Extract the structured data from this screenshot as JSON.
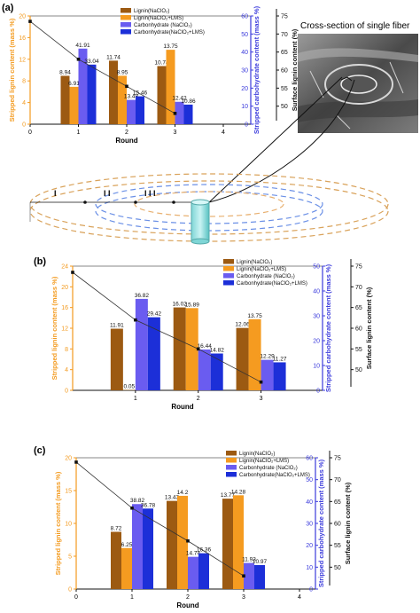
{
  "panels": [
    {
      "id": "a",
      "panel_label": "(a)",
      "chart_data": {
        "type": "bar",
        "xlabel": "Round",
        "ylabel_left": "Stripped lignin content (mass %)",
        "ylabel_right": "Stripped carbohydrate content (mass %)",
        "ylabel_far_right": "Surface lignin content (%)",
        "xlim": [
          0,
          4
        ],
        "xticks": [
          "0",
          "1",
          "2",
          "3",
          "4"
        ],
        "ylim_left": [
          0,
          20
        ],
        "yticks_left": [
          "0",
          "4",
          "8",
          "12",
          "16",
          "20"
        ],
        "ylim_right": [
          0,
          60
        ],
        "yticks_right": [
          "0",
          "10",
          "20",
          "30",
          "40",
          "50",
          "60"
        ],
        "ylim_far_right": [
          45,
          75
        ],
        "yticks_far_right": [
          "50",
          "55",
          "60",
          "65",
          "70",
          "75"
        ],
        "categories": [
          1,
          2,
          3
        ],
        "series": [
          {
            "name": "Lignin(NaClO₂)",
            "axis": "left",
            "color": "#9c5a12",
            "values": [
              8.94,
              11.74,
              10.74
            ],
            "labels": [
              "8.94",
              "11.74",
              "10.74"
            ]
          },
          {
            "name": "Lignin(NaClO₂+LMS)",
            "axis": "left",
            "color": "#f59b20",
            "values": [
              6.91,
              8.95,
              13.75
            ],
            "labels": [
              "6.91",
              "8.95",
              "13.75"
            ]
          },
          {
            "name": "Carbonhydrate (NaClO₂)",
            "axis": "right",
            "color": "#6a5cf0",
            "values": [
              41.91,
              13.48,
              12.42
            ],
            "labels": [
              "41.91",
              "13.48",
              "12.42"
            ]
          },
          {
            "name": "Carbonhydrate(NaClO₂+LMS)",
            "axis": "right",
            "color": "#1c2fd8",
            "values": [
              33.04,
              15.46,
              10.86
            ],
            "labels": [
              "33.04",
              "15.46",
              "10.86"
            ]
          }
        ],
        "trend_line": {
          "axis": "far_right",
          "x": [
            0,
            1,
            2,
            3
          ],
          "y": [
            73.5,
            63,
            55.5,
            48
          ]
        },
        "legend_position": "top-center"
      }
    },
    {
      "id": "b",
      "panel_label": "(b)",
      "chart_data": {
        "type": "bar",
        "xlabel": "Round",
        "ylabel_left": "Stripped lignin content (mass %)",
        "ylabel_right": "Stripped carbohydrate content (mass %)",
        "ylabel_far_right": "Surface lignin content (%)",
        "xlim": [
          0,
          3.5
        ],
        "xticks": [
          "1",
          "2",
          "3"
        ],
        "ylim_left": [
          0,
          24
        ],
        "yticks_left": [
          "0",
          "4",
          "8",
          "12",
          "16",
          "20",
          "24"
        ],
        "ylim_right": [
          0,
          50
        ],
        "yticks_right": [
          "0",
          "10",
          "20",
          "30",
          "40",
          "50"
        ],
        "ylim_far_right": [
          45,
          75
        ],
        "yticks_far_right": [
          "50",
          "55",
          "60",
          "65",
          "70",
          "75"
        ],
        "categories": [
          1,
          2,
          3
        ],
        "series": [
          {
            "name": "Lignin(NaClO₂)",
            "axis": "left",
            "color": "#9c5a12",
            "values": [
              11.91,
              16.02,
              12.06
            ],
            "labels": [
              "11.91",
              "16.02",
              "12.06"
            ]
          },
          {
            "name": "Lignin(NaClO₂+LMS)",
            "axis": "left",
            "color": "#f59b20",
            "values": [
              0.05,
              15.89,
              13.75
            ],
            "labels": [
              "0.05",
              "15.89",
              "13.75"
            ]
          },
          {
            "name": "Carbonhydrate (NaClO₂)",
            "axis": "right",
            "color": "#6a5cf0",
            "values": [
              36.82,
              16.44,
              12.29
            ],
            "labels": [
              "36.82",
              "16.44",
              "12.29"
            ]
          },
          {
            "name": "Carbonhydrate(NaClO₂+LMS)",
            "axis": "right",
            "color": "#1c2fd8",
            "values": [
              29.42,
              14.82,
              11.27
            ],
            "labels": [
              "29.42",
              "14.82",
              "11.27"
            ]
          }
        ],
        "trend_line": {
          "axis": "far_right",
          "x": [
            0,
            1,
            2,
            3
          ],
          "y": [
            73.5,
            62,
            55,
            47
          ]
        },
        "legend_position": "top-right"
      }
    },
    {
      "id": "c",
      "panel_label": "(c)",
      "chart_data": {
        "type": "bar",
        "xlabel": "Round",
        "ylabel_left": "Stripped lignin content (mass %)",
        "ylabel_right": "Stripped carbohydrate content (mass %)",
        "ylabel_far_right": "Surface lignin content (%)",
        "xlim": [
          0,
          4
        ],
        "xticks": [
          "0",
          "1",
          "2",
          "3",
          "4"
        ],
        "ylim_left": [
          0,
          20
        ],
        "yticks_left": [
          "0",
          "5",
          "10",
          "15",
          "20"
        ],
        "ylim_right": [
          0,
          60
        ],
        "yticks_right": [
          "0",
          "10",
          "20",
          "30",
          "40",
          "50",
          "60"
        ],
        "ylim_far_right": [
          45,
          75
        ],
        "yticks_far_right": [
          "50",
          "55",
          "60",
          "65",
          "70",
          "75"
        ],
        "categories": [
          1,
          2,
          3
        ],
        "series": [
          {
            "name": "Lignin(NaClO₂)",
            "axis": "left",
            "color": "#9c5a12",
            "values": [
              8.72,
              13.43,
              13.77
            ],
            "labels": [
              "8.72",
              "13.43",
              "13.77"
            ]
          },
          {
            "name": "Lignin(NaClO₂+LMS)",
            "axis": "left",
            "color": "#f59b20",
            "values": [
              6.25,
              14.2,
              14.28
            ],
            "labels": [
              "6.25",
              "14.2",
              "14.28"
            ]
          },
          {
            "name": "Carbonhydrate (NaClO₂)",
            "axis": "right",
            "color": "#6a5cf0",
            "values": [
              38.82,
              14.74,
              11.93
            ],
            "labels": [
              "38.82",
              "14.74",
              "11.93"
            ]
          },
          {
            "name": "Carbonhydrate(NaClO₂+LMS)",
            "axis": "right",
            "color": "#1c2fd8",
            "values": [
              36.78,
              16.36,
              10.97
            ],
            "labels": [
              "36.78",
              "16.36",
              "10.97"
            ]
          }
        ],
        "trend_line": {
          "axis": "far_right",
          "x": [
            0,
            1,
            2,
            3
          ],
          "y": [
            74,
            63.5,
            56,
            48
          ]
        },
        "legend_position": "top-right"
      }
    }
  ],
  "cross_section": {
    "title": "Cross-section of single fiber",
    "zone_labels": [
      "I",
      "I I",
      "I I I"
    ]
  },
  "colors": {
    "orange_axis": "#f39a1e",
    "blue_axis": "#3b3bdc",
    "black": "#111111"
  }
}
